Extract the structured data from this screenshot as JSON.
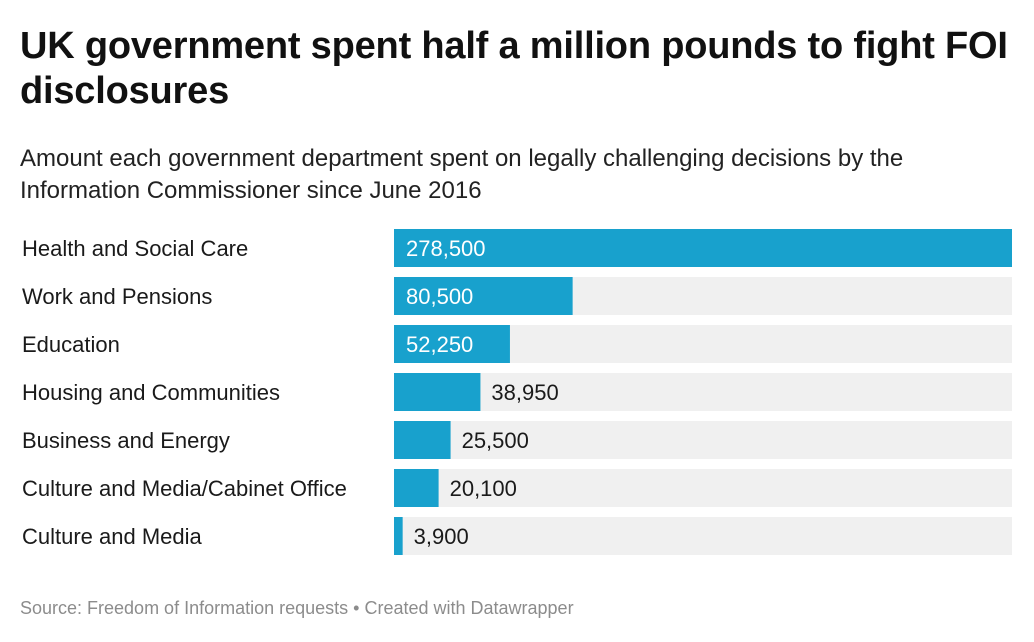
{
  "title": "UK government spent half a million pounds to fight FOI disclosures",
  "subtitle": "Amount each government department spent on legally challenging decisions by the Information Commissioner since June 2016",
  "footer": {
    "source": "Source: Freedom of Information requests • Created with Datawrapper"
  },
  "colors": {
    "bar": "#18a1cd",
    "track": "#f0f0f0",
    "label_inside": "#ffffff",
    "label_outside": "#1a1a1a"
  },
  "chart_data": {
    "type": "bar",
    "orientation": "horizontal",
    "categories": [
      "Health and Social Care",
      "Work and Pensions",
      "Education",
      "Housing and Communities",
      "Business and Energy",
      "Culture and Media/Cabinet Office",
      "Culture and Media"
    ],
    "values": [
      278500,
      80500,
      52250,
      38950,
      25500,
      20100,
      3900
    ],
    "value_labels": [
      "278,500",
      "80,500",
      "52,250",
      "38,950",
      "25,500",
      "20,100",
      "3,900"
    ],
    "xlim": [
      0,
      278500
    ]
  }
}
